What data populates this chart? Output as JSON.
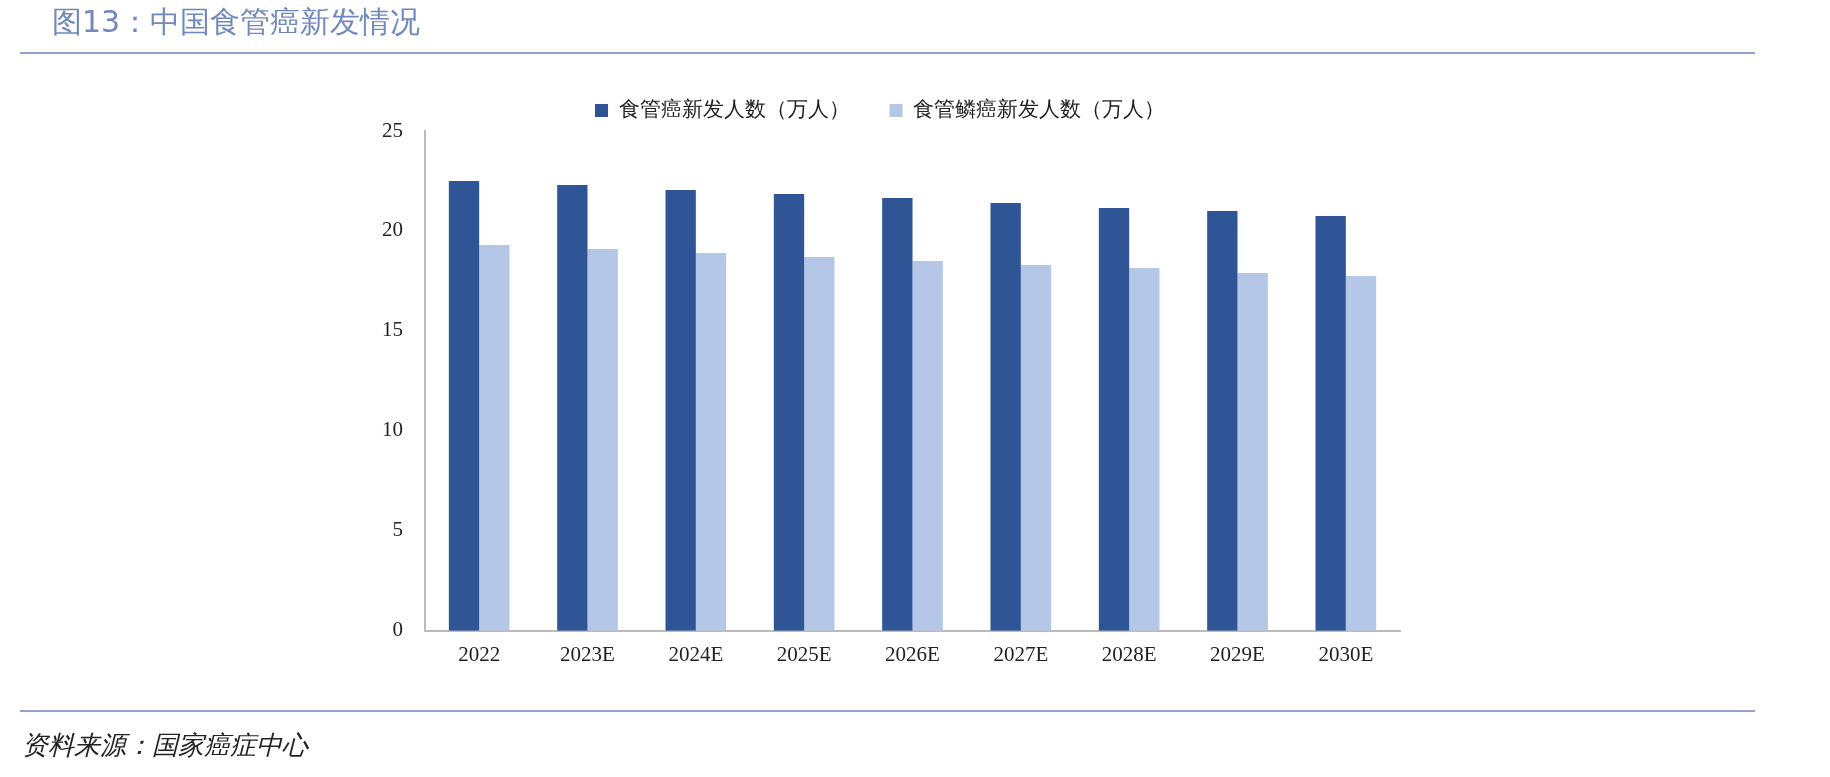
{
  "chart_data": {
    "type": "bar",
    "title": "图13：中国食管癌新发情况",
    "categories": [
      "2022",
      "2023E",
      "2024E",
      "2025E",
      "2026E",
      "2027E",
      "2028E",
      "2029E",
      "2030E"
    ],
    "series": [
      {
        "name": "食管癌新发人数（万人）",
        "color": "#2f5597",
        "values": [
          22.5,
          22.3,
          22.05,
          21.85,
          21.65,
          21.4,
          21.15,
          21.0,
          20.75
        ]
      },
      {
        "name": "食管鳞癌新发人数（万人）",
        "color": "#b4c7e7",
        "values": [
          19.3,
          19.1,
          18.9,
          18.7,
          18.5,
          18.3,
          18.15,
          17.9,
          17.75
        ]
      }
    ],
    "ylim": [
      0,
      25
    ],
    "yticks": [
      0,
      5,
      10,
      15,
      20,
      25
    ],
    "grid": false,
    "legend": "top",
    "annotations": [
      "资料来源：国家癌症中心"
    ]
  }
}
